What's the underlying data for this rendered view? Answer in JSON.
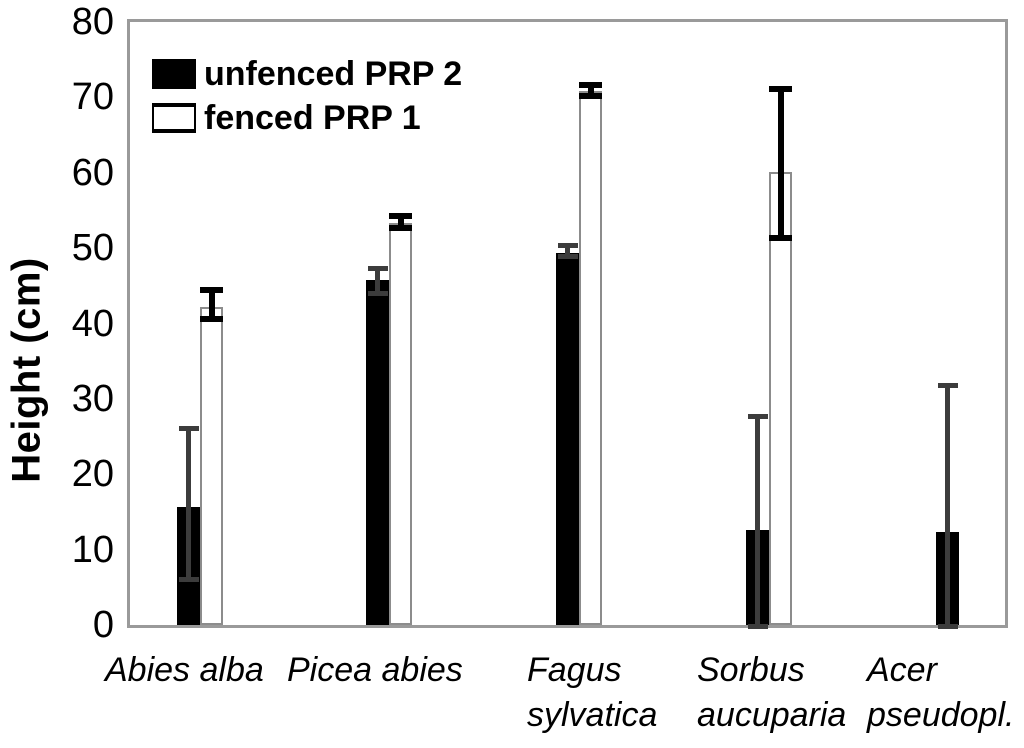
{
  "axis": {
    "y_label": "Height (cm)",
    "y_ticks": [
      0,
      10,
      20,
      30,
      40,
      50,
      60,
      70,
      80
    ],
    "y_max": 80
  },
  "legend": {
    "items": [
      {
        "label": "unfenced PRP 2",
        "swatch": "filled"
      },
      {
        "label": "fenced PRP 1",
        "swatch": "open"
      }
    ]
  },
  "chart_data": {
    "type": "bar",
    "title": "",
    "xlabel": "",
    "ylabel": "Height (cm)",
    "ylim": [
      0,
      80
    ],
    "grid": false,
    "legend_position": "top-left",
    "categories": [
      "Abies alba",
      "Picea abies",
      "Fagus sylvatica",
      "Sorbus aucuparia",
      "Acer pseudopl."
    ],
    "category_lines": [
      [
        "Abies alba"
      ],
      [
        "Picea abies"
      ],
      [
        "Fagus",
        "sylvatica"
      ],
      [
        "Sorbus",
        "aucuparia"
      ],
      [
        "Acer",
        "pseudopl."
      ]
    ],
    "series": [
      {
        "name": "unfenced PRP 2",
        "color": "#000000",
        "errbar_color": "#3c3c3c",
        "values": [
          15.6,
          45.8,
          49.3,
          12.6,
          12.3
        ],
        "err_low": [
          5.7,
          43.6,
          48.5,
          -0.5,
          -0.5
        ],
        "err_high": [
          26.4,
          47.6,
          50.7,
          28.0,
          32.1
        ]
      },
      {
        "name": "fenced PRP 1",
        "color": "#ffffff",
        "errbar_color": "#000000",
        "values": [
          42.2,
          53.3,
          70.8,
          60.1,
          null
        ],
        "err_low": [
          40.2,
          52.3,
          69.8,
          51.0,
          null
        ],
        "err_high": [
          44.8,
          54.6,
          72.0,
          71.5,
          null
        ]
      }
    ]
  }
}
